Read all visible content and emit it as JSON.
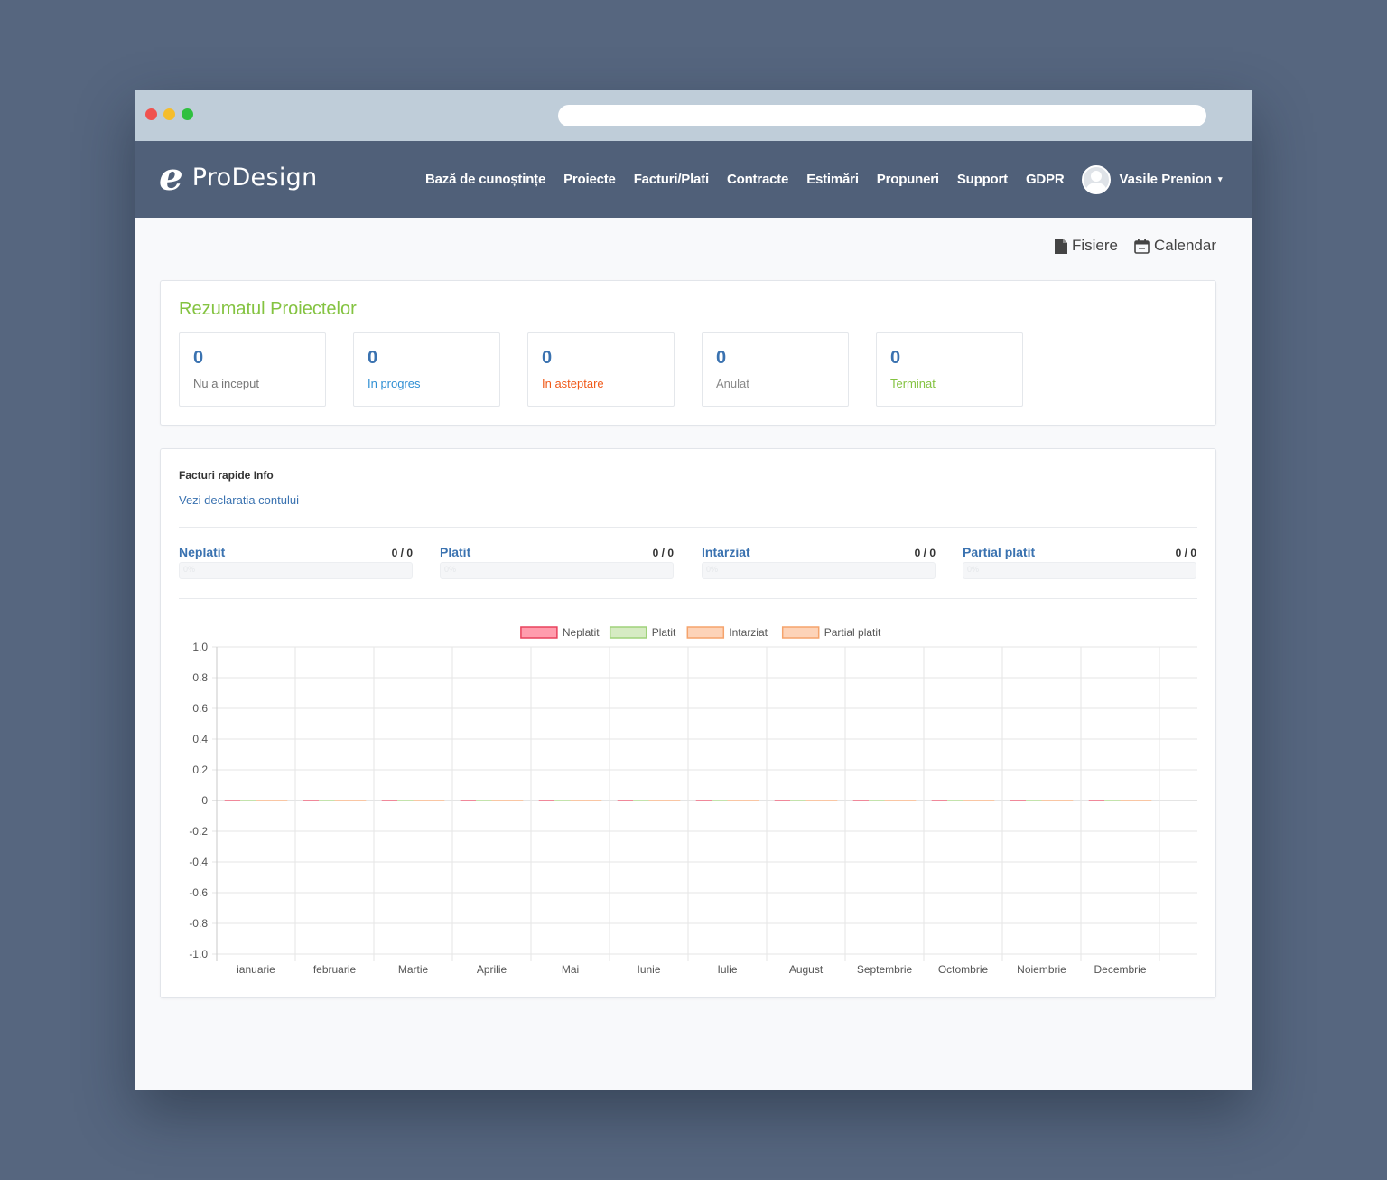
{
  "app": {
    "brand": "ProDesign",
    "logo_letter": "e"
  },
  "nav": {
    "items": [
      "Bază de cunoștințe",
      "Proiecte",
      "Facturi/Plati",
      "Contracte",
      "Estimări",
      "Propuneri",
      "Support",
      "GDPR"
    ],
    "user_name": "Vasile Prenion",
    "caret": "▾"
  },
  "top_links": {
    "files": "Fisiere",
    "calendar": "Calendar"
  },
  "summary": {
    "title": "Rezumatul Proiectelor",
    "stats": [
      {
        "value": "0",
        "label": "Nu a inceput",
        "color": "#777777"
      },
      {
        "value": "0",
        "label": "In progres",
        "color": "#2f8fd3"
      },
      {
        "value": "0",
        "label": "In asteptare",
        "color": "#f05a1a"
      },
      {
        "value": "0",
        "label": "Anulat",
        "color": "#888888"
      },
      {
        "value": "0",
        "label": "Terminat",
        "color": "#84c341"
      }
    ]
  },
  "invoices": {
    "title": "Facturi rapide Info",
    "statement_link": "Vezi declaratia contului",
    "stats": [
      {
        "label": "Neplatit",
        "value": "0 / 0",
        "percent": "0%",
        "progress": 0
      },
      {
        "label": "Platit",
        "value": "0 / 0",
        "percent": "0%",
        "progress": 0
      },
      {
        "label": "Intarziat",
        "value": "0 / 0",
        "percent": "0%",
        "progress": 0
      },
      {
        "label": "Partial platit",
        "value": "0 / 0",
        "percent": "0%",
        "progress": 0
      }
    ]
  },
  "chart_data": {
    "type": "bar",
    "categories": [
      "ianuarie",
      "februarie",
      "Martie",
      "Aprilie",
      "Mai",
      "Iunie",
      "Iulie",
      "August",
      "Septembrie",
      "Octombrie",
      "Noiembrie",
      "Decembrie"
    ],
    "series": [
      {
        "name": "Neplatit",
        "values": [
          0,
          0,
          0,
          0,
          0,
          0,
          0,
          0,
          0,
          0,
          0,
          0
        ],
        "color": "#ff9cad",
        "border": "#e8425d"
      },
      {
        "name": "Platit",
        "values": [
          0,
          0,
          0,
          0,
          0,
          0,
          0,
          0,
          0,
          0,
          0,
          0
        ],
        "color": "#d6ebc3",
        "border": "#9fd27a"
      },
      {
        "name": "Intarziat",
        "values": [
          0,
          0,
          0,
          0,
          0,
          0,
          0,
          0,
          0,
          0,
          0,
          0
        ],
        "color": "#fdd3b8",
        "border": "#f5a36c"
      },
      {
        "name": "Partial platit",
        "values": [
          0,
          0,
          0,
          0,
          0,
          0,
          0,
          0,
          0,
          0,
          0,
          0
        ],
        "color": "#fdd3b8",
        "border": "#f5a36c"
      }
    ],
    "yticks": [
      "1.0",
      "0.8",
      "0.6",
      "0.4",
      "0.2",
      "0",
      "-0.2",
      "-0.4",
      "-0.6",
      "-0.8",
      "-1.0"
    ],
    "ylim": [
      -1.0,
      1.0
    ],
    "legend": "top-center",
    "grid": true
  }
}
